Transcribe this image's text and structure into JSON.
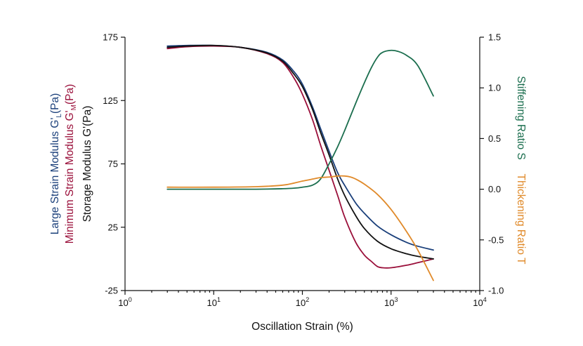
{
  "chart_data": {
    "type": "line",
    "xscale": "log",
    "xlim": [
      1,
      10000
    ],
    "x_tick_labels": [
      {
        "base": "10",
        "exp": "0"
      },
      {
        "base": "10",
        "exp": "1"
      },
      {
        "base": "10",
        "exp": "2"
      },
      {
        "base": "10",
        "exp": "3"
      },
      {
        "base": "10",
        "exp": "4"
      }
    ],
    "xlabel": "Oscillation Strain (%)",
    "ylim_left": [
      -25,
      175
    ],
    "y_left_ticks": [
      "175",
      "125",
      "75",
      "25",
      "-25"
    ],
    "ylim_right": [
      -1.0,
      1.5
    ],
    "y_right_ticks": [
      "1.5",
      "1.0",
      "0.5",
      "0.0",
      "-0.5",
      "-1.0"
    ],
    "ylabels_left": [
      {
        "main": "Large Strain Modulus G'",
        "sub": "L",
        "suffix": "(Pa)",
        "color": "#1a3f7a"
      },
      {
        "main": "Minimum Strain Modulus G'",
        "sub": "M",
        "suffix": "(Pa)",
        "color": "#9a0f3a"
      },
      {
        "main": "Storage Modulus G'(Pa)",
        "sub": "",
        "suffix": "",
        "color": "#111111"
      }
    ],
    "ylabels_right": [
      {
        "text": "Stiffening Ratio S",
        "color": "#1b6e4e"
      },
      {
        "text": "Thickening Ratio T",
        "color": "#e08a2a"
      }
    ],
    "grid": false,
    "series": [
      {
        "axis": "left",
        "color": "#1a3f7a",
        "x": [
          3,
          5,
          10,
          20,
          40,
          60,
          80,
          100,
          130,
          160,
          200,
          250,
          300,
          400,
          500,
          700,
          1000,
          1500,
          2000,
          3000
        ],
        "y": [
          168,
          168.5,
          168.5,
          167,
          163,
          157,
          148,
          138,
          120,
          103,
          85,
          68,
          58,
          44,
          36,
          26,
          19,
          13,
          10,
          7
        ]
      },
      {
        "axis": "left",
        "color": "#9a0f3a",
        "x": [
          3,
          5,
          10,
          20,
          40,
          60,
          80,
          100,
          130,
          160,
          200,
          250,
          300,
          400,
          500,
          600,
          700,
          800,
          1000,
          1500,
          2000,
          3000
        ],
        "y": [
          166,
          167.5,
          168,
          167,
          162,
          155,
          143,
          130,
          110,
          90,
          70,
          50,
          33,
          13,
          3,
          -2,
          -6,
          -7,
          -7,
          -5,
          -3,
          0
        ]
      },
      {
        "axis": "left",
        "color": "#111111",
        "x": [
          3,
          5,
          10,
          20,
          40,
          60,
          80,
          100,
          130,
          160,
          200,
          250,
          300,
          400,
          500,
          700,
          1000,
          1500,
          2000,
          3000
        ],
        "y": [
          167,
          168,
          168.5,
          167,
          162.5,
          156,
          146,
          136,
          118,
          100,
          82,
          63,
          50,
          34,
          24,
          14,
          8,
          4,
          2,
          0
        ]
      },
      {
        "axis": "right",
        "color": "#1b6e4e",
        "x": [
          3,
          10,
          30,
          60,
          80,
          100,
          130,
          160,
          200,
          250,
          300,
          400,
          500,
          600,
          700,
          800,
          1000,
          1200,
          1500,
          2000,
          3000
        ],
        "y": [
          0.0,
          0.0,
          0.0,
          0.005,
          0.01,
          0.02,
          0.04,
          0.1,
          0.25,
          0.42,
          0.58,
          0.85,
          1.05,
          1.2,
          1.3,
          1.35,
          1.37,
          1.36,
          1.32,
          1.22,
          0.92
        ]
      },
      {
        "axis": "right",
        "color": "#e08a2a",
        "x": [
          3,
          10,
          30,
          60,
          80,
          100,
          130,
          160,
          200,
          250,
          300,
          350,
          400,
          500,
          700,
          1000,
          1500,
          2000,
          3000
        ],
        "y": [
          0.02,
          0.02,
          0.025,
          0.04,
          0.06,
          0.08,
          0.1,
          0.115,
          0.12,
          0.13,
          0.13,
          0.12,
          0.1,
          0.05,
          -0.05,
          -0.2,
          -0.42,
          -0.6,
          -0.9
        ]
      }
    ]
  }
}
